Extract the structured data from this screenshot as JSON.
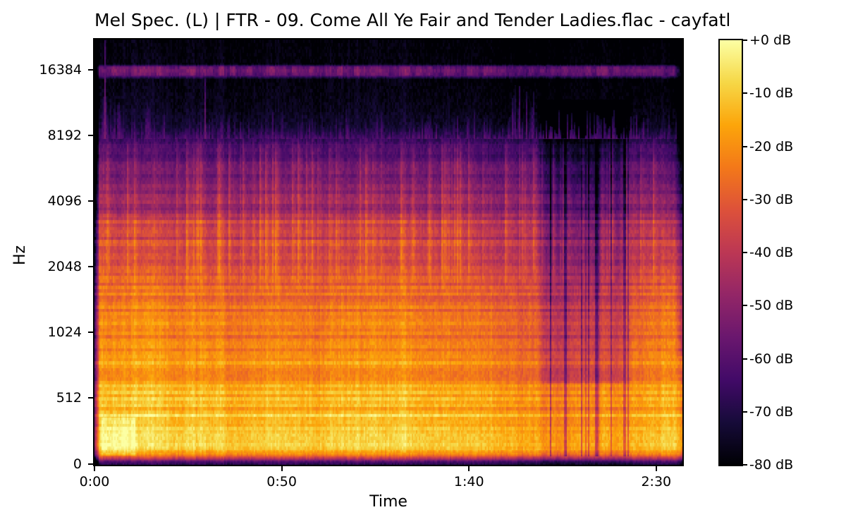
{
  "chart_data": {
    "type": "heatmap",
    "subtype": "mel-spectrogram",
    "title": "Mel Spec. (L) | FTR - 09. Come All Ye Fair and Tender Ladies.flac - cayfatl",
    "xlabel": "Time",
    "ylabel": "Hz",
    "x_axis": {
      "duration_seconds": 157,
      "ticks": [
        {
          "label": "0:00",
          "seconds": 0
        },
        {
          "label": "0:50",
          "seconds": 50
        },
        {
          "label": "1:40",
          "seconds": 100
        },
        {
          "label": "2:30",
          "seconds": 150
        }
      ]
    },
    "y_axis": {
      "scale": "log-above-512hz-linear-below",
      "fmax_hz": 22470,
      "ticks": [
        {
          "label": "16384",
          "hz": 16384
        },
        {
          "label": "8192",
          "hz": 8192
        },
        {
          "label": "4096",
          "hz": 4096
        },
        {
          "label": "2048",
          "hz": 2048
        },
        {
          "label": "1024",
          "hz": 1024
        },
        {
          "label": "512",
          "hz": 512
        },
        {
          "label": "0",
          "hz": 0
        }
      ]
    },
    "colorbar": {
      "max_db": 0,
      "min_db": -80,
      "ticks": [
        "+0 dB",
        "-10 dB",
        "-20 dB",
        "-30 dB",
        "-40 dB",
        "-50 dB",
        "-60 dB",
        "-70 dB",
        "-80 dB"
      ]
    },
    "colormap": {
      "name": "inferno",
      "stops": [
        "#000004",
        "#160b39",
        "#420a68",
        "#6a176e",
        "#932667",
        "#bc3754",
        "#dd513a",
        "#f37819",
        "#fca50a",
        "#f6d746",
        "#fcffa4"
      ]
    },
    "style": {
      "background": "#ffffff",
      "text_color": "#000000",
      "spine_color": "#000000"
    },
    "content": {
      "description": "Folk song spectrogram: bright orange-yellow energy 60-500 Hz (-8 to -20 dB), harmonic horizontal banding 250-3800 Hz, violet vertical onset streaks 1.4-9 kHz, sparse high-frequency transient spikes above 8 kHz (dense in the first 20 s), a constant narrow purple tone band near 16 kHz (~-55 dB) across the full track, a quieter heavily striated passage ~1:58-2:24 with thin dark vertical lines, a dark intro column before 0:02, and a fade-out after ~2:35",
      "seed": 1337,
      "base_profile_hz_db": [
        [
          0,
          -70
        ],
        [
          22,
          -62
        ],
        [
          50,
          -38
        ],
        [
          80,
          -22
        ],
        [
          110,
          -13
        ],
        [
          170,
          -10
        ],
        [
          260,
          -9
        ],
        [
          380,
          -12
        ],
        [
          520,
          -16
        ],
        [
          700,
          -19
        ],
        [
          950,
          -23
        ],
        [
          1300,
          -27
        ],
        [
          1800,
          -32
        ],
        [
          2500,
          -38
        ],
        [
          3400,
          -45
        ],
        [
          4600,
          -52
        ],
        [
          6000,
          -58
        ],
        [
          7600,
          -66
        ],
        [
          9000,
          -74
        ],
        [
          11000,
          -77
        ],
        [
          14800,
          -79
        ],
        [
          15500,
          -58
        ],
        [
          16300,
          -55
        ],
        [
          16900,
          -58
        ],
        [
          17400,
          -79
        ],
        [
          22500,
          -80
        ]
      ],
      "tone_band_hz": [
        15450,
        17050
      ],
      "quiet_section_s": {
        "start": 118,
        "end": 144,
        "mid_high_drop_db": 11,
        "low_drop_db": 4,
        "dark_line_chance": 0.22
      },
      "intro_dark_until_s": 1.4,
      "fade_out_from_s": 155,
      "onset_streaks": {
        "band_hz": [
          1400,
          9000
        ],
        "max_boost_db": 13,
        "chance": 0.2
      },
      "hf_spikes": {
        "band_hz": [
          7900,
          15500
        ],
        "early_until_s": 22,
        "db": -58
      },
      "special_spikes": [
        {
          "t_s": 2.6,
          "top_hz": 22400,
          "db": -52
        },
        {
          "t_s": 29.4,
          "top_hz": 15200,
          "db": -54
        },
        {
          "t_s": 113.5,
          "top_hz": 13800,
          "db": -57
        },
        {
          "t_s": 115.2,
          "top_hz": 13000,
          "db": -58
        }
      ],
      "bright_blob": {
        "t_s": [
          2,
          11
        ],
        "hz": [
          70,
          360
        ],
        "boost_db": 7
      }
    }
  }
}
